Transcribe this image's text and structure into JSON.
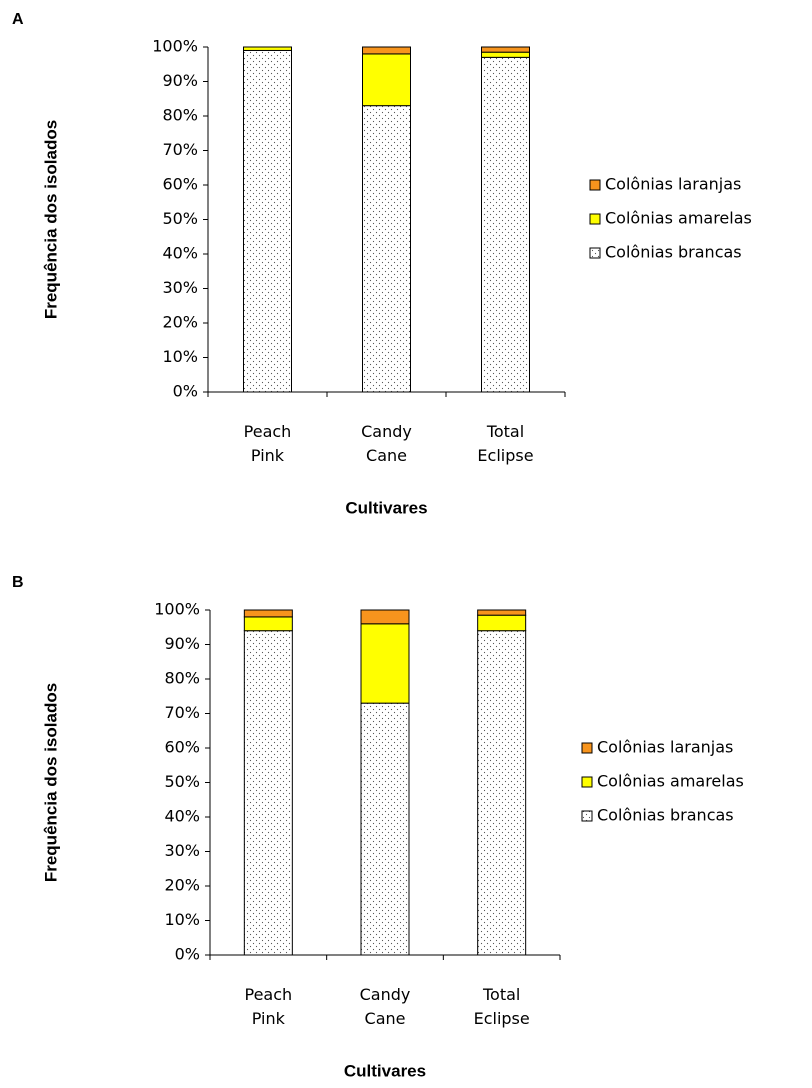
{
  "chart_data": [
    {
      "type": "stacked_bar",
      "panel": "A",
      "xlabel": "Cultivares",
      "ylabel": "Frequência dos isolados",
      "categories": [
        "Peach Pink",
        "Candy Cane",
        "Total Eclipse"
      ],
      "series": [
        {
          "name": "Colônias brancas",
          "color": "#ffffff",
          "pattern": "dots",
          "values": [
            99,
            83,
            97
          ]
        },
        {
          "name": "Colônias amarelas",
          "color": "#ffff00",
          "values": [
            1,
            15,
            1.5
          ]
        },
        {
          "name": "Colônias laranjas",
          "color": "#f7941d",
          "values": [
            0,
            2,
            1.5
          ]
        }
      ],
      "ylim": [
        0,
        100
      ],
      "yticks": [
        {
          "value": 0,
          "label": "0%"
        },
        {
          "value": 10,
          "label": "10%"
        },
        {
          "value": 20,
          "label": "20%"
        },
        {
          "value": 30,
          "label": "30%"
        },
        {
          "value": 40,
          "label": "40%"
        },
        {
          "value": 50,
          "label": "50%"
        },
        {
          "value": 60,
          "label": "60%"
        },
        {
          "value": 70,
          "label": "70%"
        },
        {
          "value": 80,
          "label": "80%"
        },
        {
          "value": 90,
          "label": "90%"
        },
        {
          "value": 100,
          "label": "100%"
        }
      ],
      "legend": "right"
    },
    {
      "type": "stacked_bar",
      "panel": "B",
      "xlabel": "Cultivares",
      "ylabel": "Frequência dos isolados",
      "categories": [
        "Peach Pink",
        "Candy Cane",
        "Total Eclipse"
      ],
      "series": [
        {
          "name": "Colônias brancas",
          "color": "#ffffff",
          "pattern": "dots",
          "values": [
            94,
            73,
            94
          ]
        },
        {
          "name": "Colônias amarelas",
          "color": "#ffff00",
          "values": [
            4,
            23,
            4.5
          ]
        },
        {
          "name": "Colônias laranjas",
          "color": "#f7941d",
          "values": [
            2,
            4,
            1.5
          ]
        }
      ],
      "ylim": [
        0,
        100
      ],
      "yticks": [
        {
          "value": 0,
          "label": "0%"
        },
        {
          "value": 10,
          "label": "10%"
        },
        {
          "value": 20,
          "label": "20%"
        },
        {
          "value": 30,
          "label": "30%"
        },
        {
          "value": 40,
          "label": "40%"
        },
        {
          "value": 50,
          "label": "50%"
        },
        {
          "value": 60,
          "label": "60%"
        },
        {
          "value": 70,
          "label": "70%"
        },
        {
          "value": 80,
          "label": "80%"
        },
        {
          "value": 90,
          "label": "90%"
        },
        {
          "value": 100,
          "label": "100%"
        }
      ],
      "legend": "right"
    }
  ]
}
